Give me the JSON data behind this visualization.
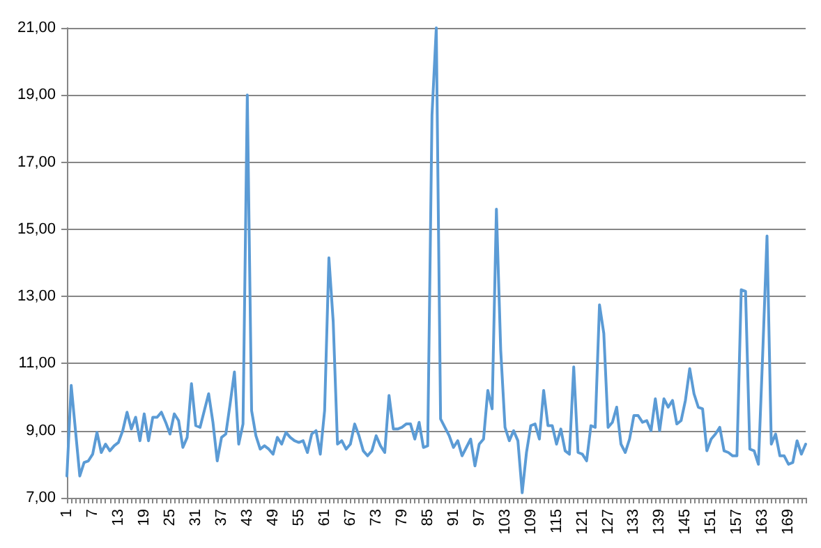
{
  "chart_data": {
    "type": "line",
    "categories": [
      "1",
      null,
      null,
      null,
      null,
      null,
      "7",
      null,
      null,
      null,
      null,
      null,
      "13",
      null,
      null,
      null,
      null,
      null,
      "19",
      null,
      null,
      null,
      null,
      null,
      "25",
      null,
      null,
      null,
      null,
      null,
      "31",
      null,
      null,
      null,
      null,
      null,
      "37",
      null,
      null,
      null,
      null,
      null,
      "43",
      null,
      null,
      null,
      null,
      null,
      "49",
      null,
      null,
      null,
      null,
      null,
      "55",
      null,
      null,
      null,
      null,
      null,
      "61",
      null,
      null,
      null,
      null,
      null,
      "67",
      null,
      null,
      null,
      null,
      null,
      "73",
      null,
      null,
      null,
      null,
      null,
      "79",
      null,
      null,
      null,
      null,
      null,
      "85",
      null,
      null,
      null,
      null,
      null,
      "91",
      null,
      null,
      null,
      null,
      null,
      "97",
      null,
      null,
      null,
      null,
      null,
      "103",
      null,
      null,
      null,
      null,
      null,
      "109",
      null,
      null,
      null,
      null,
      null,
      "115",
      null,
      null,
      null,
      null,
      null,
      "121",
      null,
      null,
      null,
      null,
      null,
      "127",
      null,
      null,
      null,
      null,
      null,
      "133",
      null,
      null,
      null,
      null,
      null,
      "139",
      null,
      null,
      null,
      null,
      null,
      "145",
      null,
      null,
      null,
      null,
      null,
      "151",
      null,
      null,
      null,
      null,
      null,
      "157",
      null,
      null,
      null,
      null,
      null,
      "163",
      null,
      null,
      null,
      null,
      null,
      "169",
      null,
      null,
      null,
      null
    ],
    "series": [
      {
        "color": "#5b9bd5",
        "values": [
          7.65,
          10.35,
          9.0,
          7.65,
          8.05,
          8.1,
          8.3,
          8.95,
          8.35,
          8.6,
          8.4,
          8.55,
          8.65,
          9.0,
          9.55,
          9.05,
          9.4,
          8.7,
          9.5,
          8.7,
          9.4,
          9.4,
          9.55,
          9.25,
          8.9,
          9.5,
          9.3,
          8.5,
          8.8,
          10.4,
          9.15,
          9.1,
          9.6,
          10.1,
          9.25,
          8.1,
          8.8,
          8.9,
          9.8,
          10.75,
          8.6,
          9.2,
          19.0,
          9.6,
          8.85,
          8.45,
          8.55,
          8.45,
          8.3,
          8.8,
          8.6,
          8.95,
          8.8,
          8.7,
          8.65,
          8.7,
          8.35,
          8.9,
          9.0,
          8.3,
          9.6,
          14.15,
          12.25,
          8.6,
          8.7,
          8.45,
          8.6,
          9.2,
          8.85,
          8.4,
          8.25,
          8.4,
          8.85,
          8.55,
          8.35,
          10.05,
          9.05,
          9.05,
          9.1,
          9.2,
          9.2,
          8.75,
          9.25,
          8.5,
          8.55,
          18.4,
          21.0,
          9.35,
          9.1,
          8.85,
          8.5,
          8.7,
          8.25,
          8.5,
          8.75,
          7.95,
          8.6,
          8.75,
          10.2,
          9.65,
          15.6,
          11.4,
          9.1,
          8.7,
          9.0,
          8.7,
          7.15,
          8.35,
          9.15,
          9.2,
          8.75,
          10.2,
          9.15,
          9.15,
          8.6,
          9.05,
          8.4,
          8.3,
          10.9,
          8.35,
          8.3,
          8.1,
          9.15,
          9.1,
          12.75,
          11.9,
          9.1,
          9.25,
          9.7,
          8.6,
          8.35,
          8.75,
          9.45,
          9.45,
          9.25,
          9.3,
          9.0,
          9.95,
          9.0,
          9.95,
          9.7,
          9.9,
          9.2,
          9.3,
          9.9,
          10.85,
          10.1,
          9.7,
          9.65,
          8.4,
          8.75,
          8.9,
          9.1,
          8.4,
          8.35,
          8.25,
          8.25,
          13.2,
          13.15,
          8.45,
          8.4,
          8.0,
          11.3,
          14.8,
          8.6,
          8.9,
          8.25,
          8.25,
          8.0,
          8.05,
          8.7,
          8.3,
          8.6
        ]
      }
    ],
    "ylim": [
      7,
      21
    ],
    "yticks": [
      {
        "value": 7,
        "label": "7,00"
      },
      {
        "value": 9,
        "label": "9,00"
      },
      {
        "value": 11,
        "label": "11,00"
      },
      {
        "value": 13,
        "label": "13,00"
      },
      {
        "value": 15,
        "label": "15,00"
      },
      {
        "value": 17,
        "label": "17,00"
      },
      {
        "value": 19,
        "label": "19,00"
      },
      {
        "value": 21,
        "label": "21,00"
      }
    ],
    "grid": "y",
    "marker": "none",
    "line_style": "solid"
  }
}
